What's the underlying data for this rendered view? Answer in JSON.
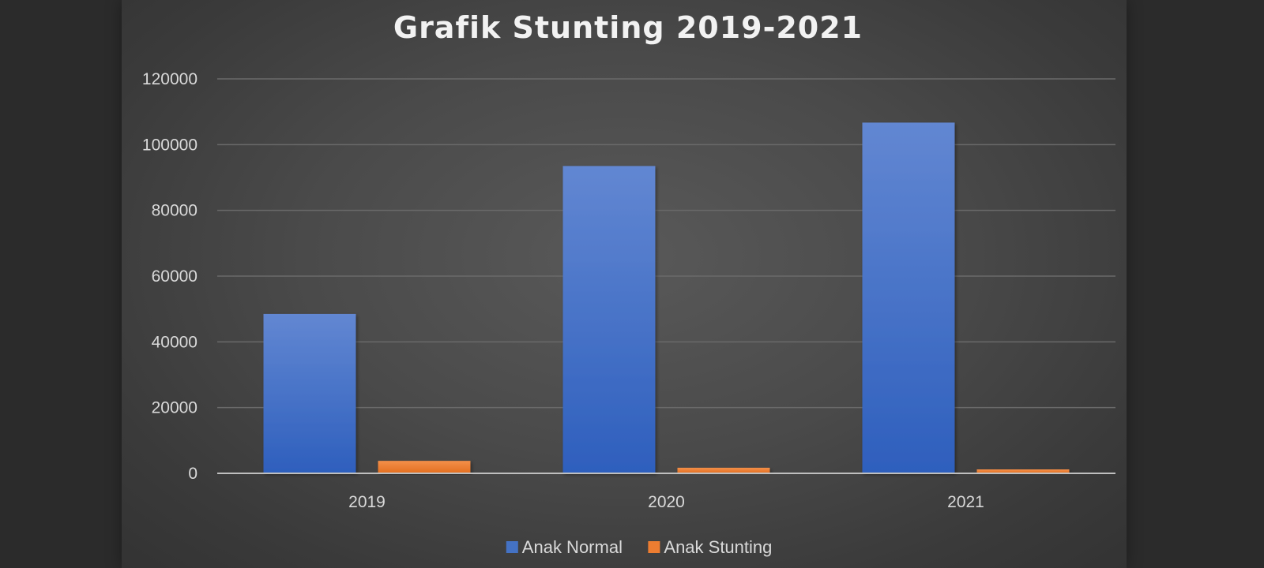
{
  "chart_data": {
    "type": "bar",
    "title": "Grafik Stunting 2019-2021",
    "xlabel": "",
    "ylabel": "",
    "categories": [
      "2019",
      "2020",
      "2021"
    ],
    "series": [
      {
        "name": "Anak Normal",
        "values": [
          48500,
          93500,
          106700
        ],
        "color": "#4472c4"
      },
      {
        "name": "Anak Stunting",
        "values": [
          3800,
          1700,
          1200
        ],
        "color": "#ed7d31"
      }
    ],
    "ylim": [
      0,
      120000
    ],
    "yticks": [
      0,
      20000,
      40000,
      60000,
      80000,
      100000,
      120000
    ],
    "grid": true,
    "legend_position": "bottom"
  }
}
